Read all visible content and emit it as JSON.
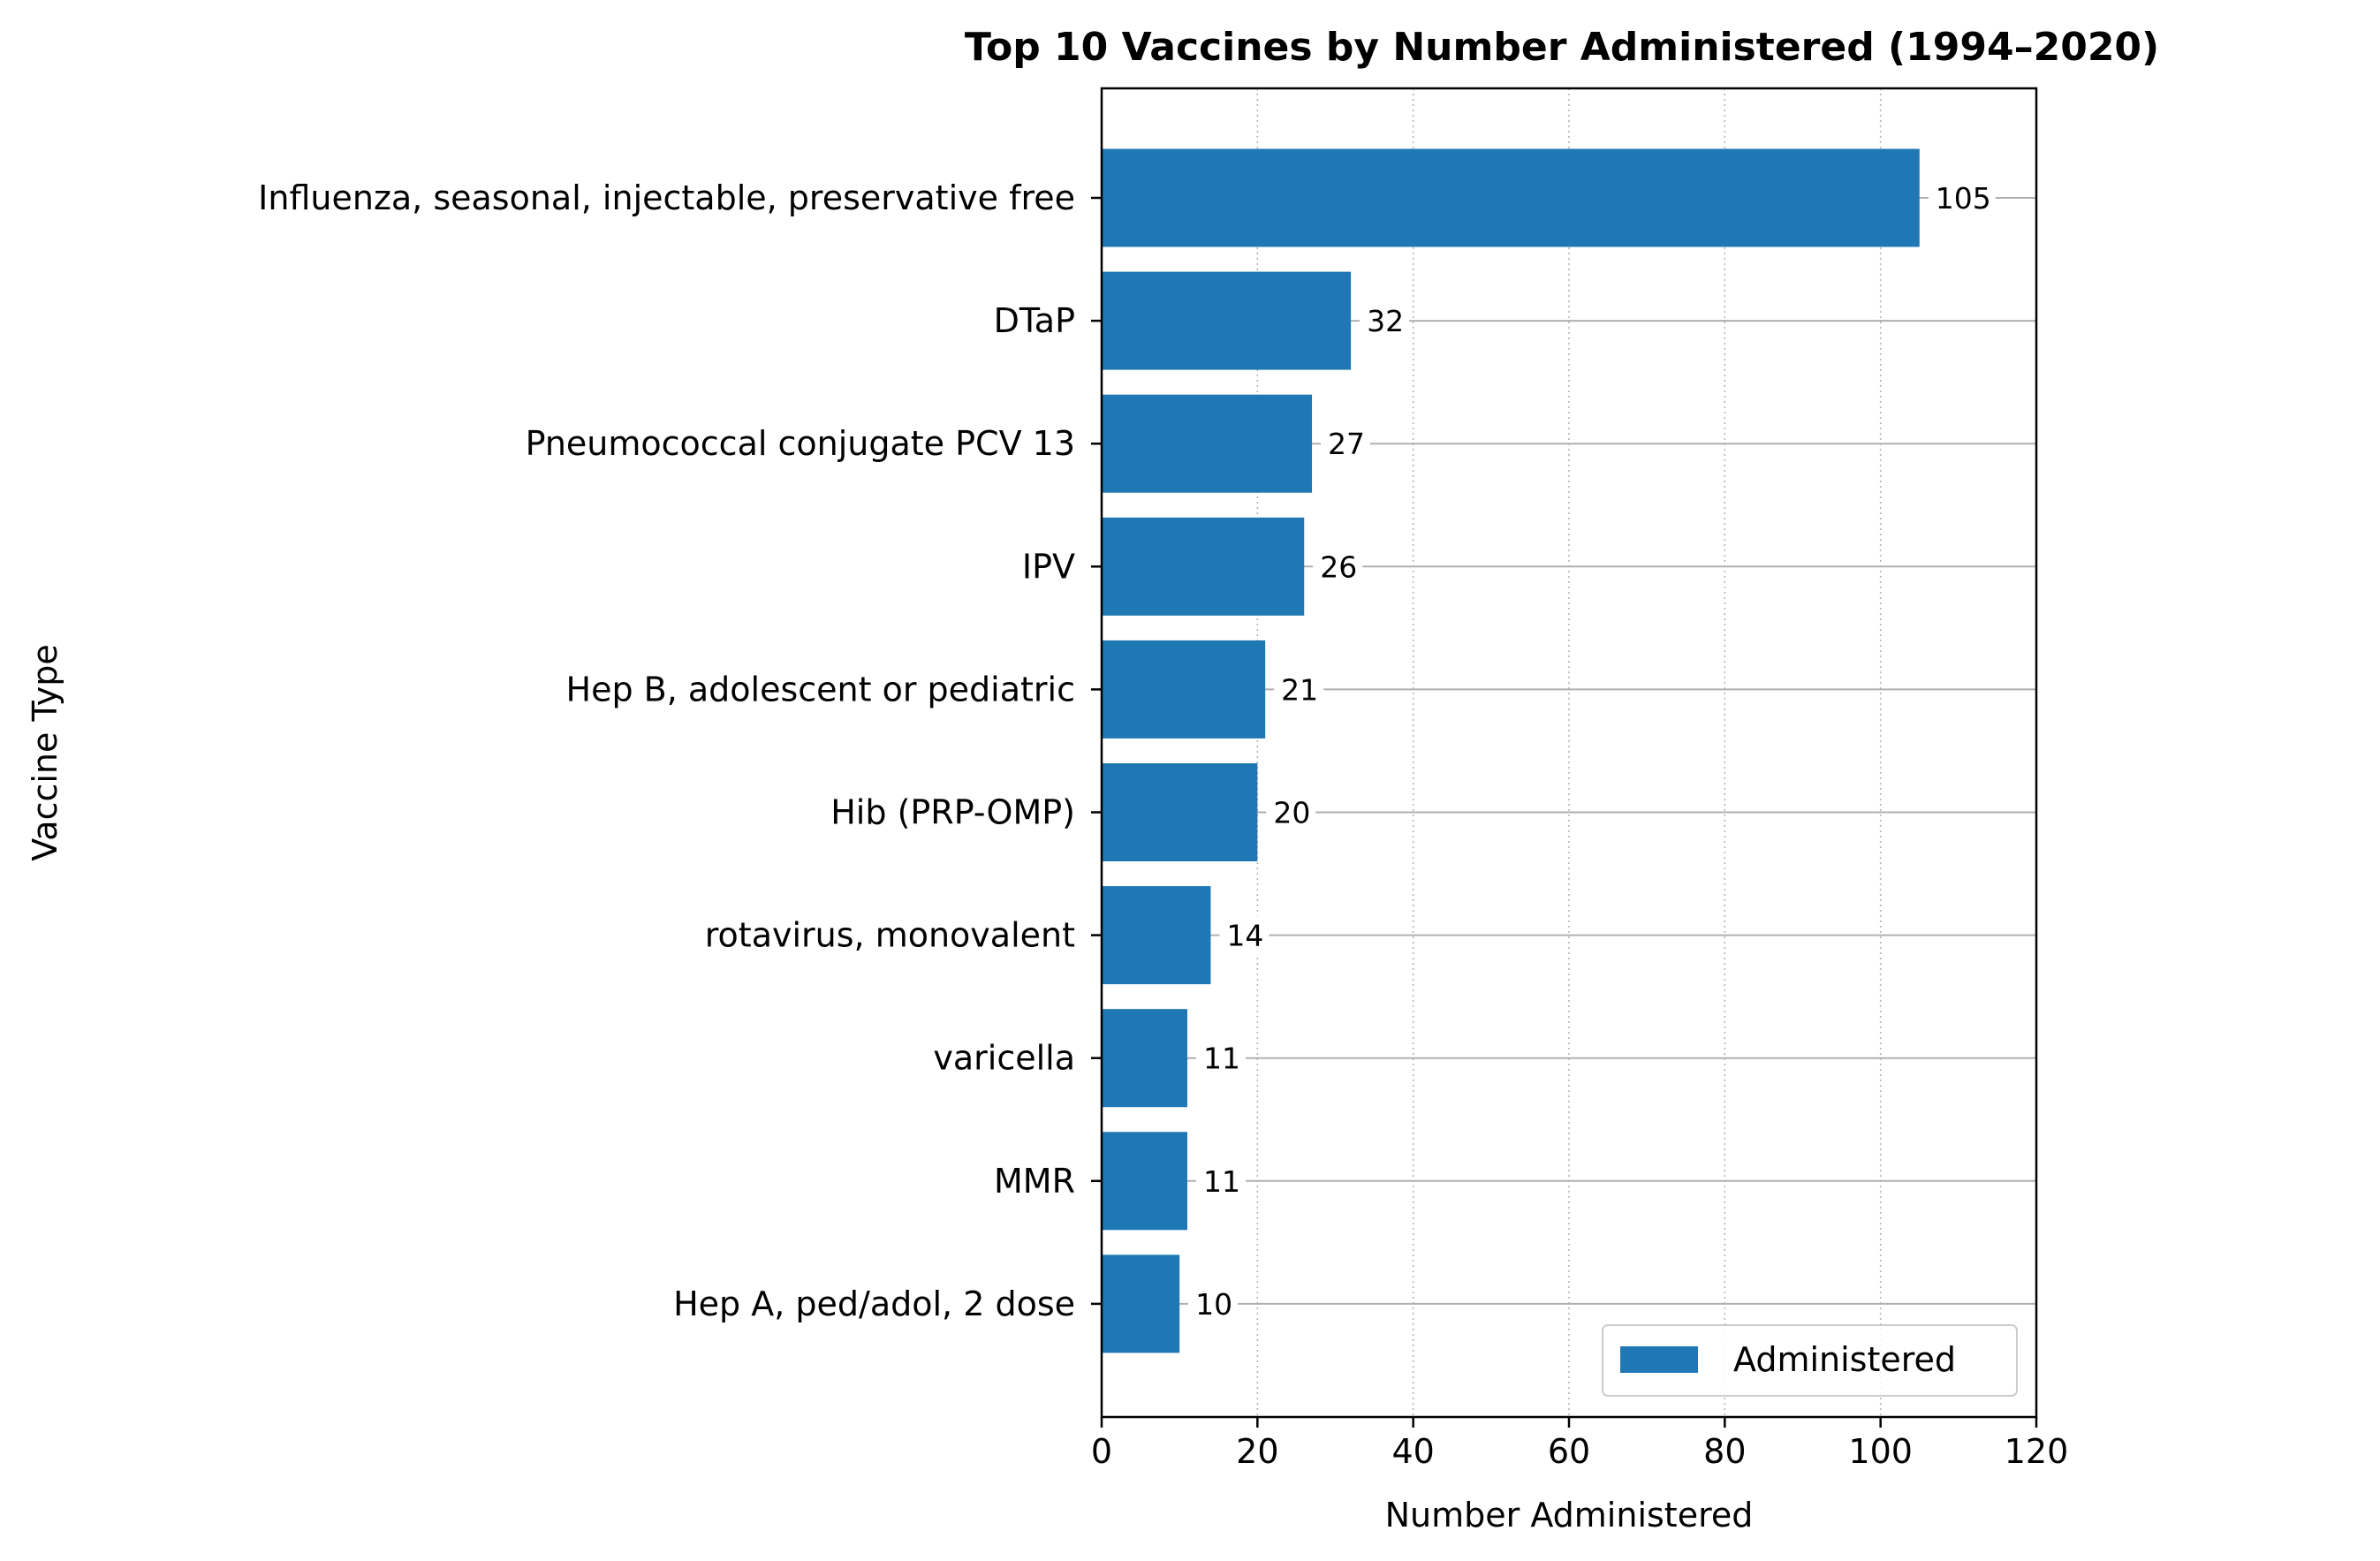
{
  "chart_data": {
    "type": "bar",
    "orientation": "horizontal",
    "title": "Top 10 Vaccines by Number Administered (1994–2020)",
    "xlabel": "Number Administered",
    "ylabel": "Vaccine Type",
    "categories": [
      "Influenza, seasonal, injectable, preservative free",
      "DTaP",
      "Pneumococcal conjugate PCV 13",
      "IPV",
      "Hep B, adolescent or pediatric",
      "Hib (PRP-OMP)",
      "rotavirus, monovalent",
      "varicella",
      "MMR",
      "Hep A, ped/adol, 2 dose"
    ],
    "series": [
      {
        "name": "Administered",
        "values": [
          105,
          32,
          27,
          26,
          21,
          20,
          14,
          11,
          11,
          10
        ]
      }
    ],
    "data_labels": [
      "105",
      "32",
      "27",
      "26",
      "21",
      "20",
      "14",
      "11",
      "11",
      "10"
    ],
    "xlim": [
      0,
      120
    ],
    "xticks": [
      0,
      20,
      40,
      60,
      80,
      100,
      120
    ],
    "xtick_labels": [
      "0",
      "20",
      "40",
      "60",
      "80",
      "100",
      "120"
    ],
    "grid": {
      "x": "dotted",
      "y": "solid"
    },
    "legend_position": "bottom-right",
    "colors": {
      "bar": "#1f77b4",
      "grid": "#b0b0b0",
      "axis": "#000000"
    }
  }
}
